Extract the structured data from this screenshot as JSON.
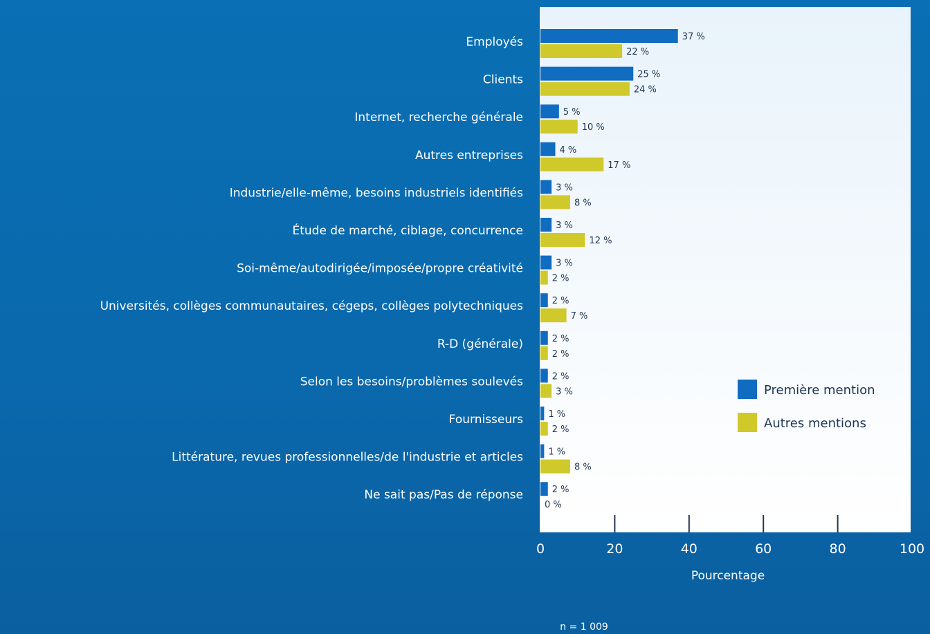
{
  "chart_data": {
    "type": "bar",
    "orientation": "horizontal",
    "categories": [
      "Employés",
      "Clients",
      "Internet, recherche générale",
      "Autres entreprises",
      "Industrie/elle-même, besoins industriels identifiés",
      "Étude de marché, ciblage, concurrence",
      "Soi-même/autodirigée/imposée/propre créativité",
      "Universités, collèges communautaires, cégeps, collèges polytechniques",
      "R-D (générale)",
      "Selon les besoins/problèmes soulevés",
      "Fournisseurs",
      "Littérature, revues professionnelles/de l'industrie et articles",
      "Ne sait pas/Pas de réponse"
    ],
    "series": [
      {
        "name": "Première mention",
        "color": "#0f6cc0",
        "values": [
          37,
          25,
          5,
          4,
          3,
          3,
          3,
          2,
          2,
          2,
          1,
          1,
          2
        ],
        "labels": [
          "37 %",
          "25 %",
          "5 %",
          "4 %",
          "3 %",
          "3 %",
          "3 %",
          "2 %",
          "2 %",
          "2 %",
          "1 %",
          "1 %",
          "2 %"
        ]
      },
      {
        "name": "Autres mentions",
        "color": "#cfc92b",
        "values": [
          22,
          24,
          10,
          17,
          8,
          12,
          2,
          7,
          2,
          3,
          2,
          8,
          0
        ],
        "labels": [
          "22 %",
          "24 %",
          "10 %",
          "17 %",
          "8 %",
          "12 %",
          "2 %",
          "7 %",
          "2 %",
          "3 %",
          "2 %",
          "8 %",
          "0 %"
        ]
      }
    ],
    "xlabel": "Pourcentage",
    "xlim": [
      0,
      100
    ],
    "xticks": [
      "0",
      "20",
      "40",
      "60",
      "80",
      "100"
    ],
    "legend_position": "bottom-right",
    "note": "n = 1 009"
  }
}
